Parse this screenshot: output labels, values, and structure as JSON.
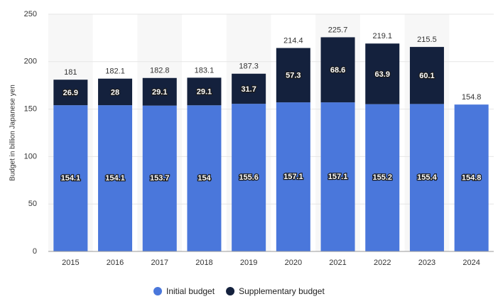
{
  "chart_data": {
    "type": "stacked_bar",
    "y_label": "Budget in billion Japanese yen",
    "categories": [
      "2015",
      "2016",
      "2017",
      "2018",
      "2019",
      "2020",
      "2021",
      "2022",
      "2023",
      "2024"
    ],
    "series": [
      {
        "name": "Initial budget",
        "color": "#4a77db",
        "values": [
          154.1,
          154.1,
          153.7,
          154,
          155.6,
          157.1,
          157.1,
          155.2,
          155.4,
          154.8
        ]
      },
      {
        "name": "Supplementary budget",
        "color": "#14213d",
        "values": [
          26.9,
          28,
          29.1,
          29.1,
          31.7,
          57.3,
          68.6,
          63.9,
          60.1,
          null
        ]
      }
    ],
    "totals": [
      181,
      182.1,
      182.8,
      183.1,
      187.3,
      214.4,
      225.7,
      219.1,
      215.5,
      154.8
    ],
    "ylim": [
      0,
      250
    ],
    "yticks": [
      0,
      50,
      100,
      150,
      200,
      250
    ],
    "grid": true
  }
}
